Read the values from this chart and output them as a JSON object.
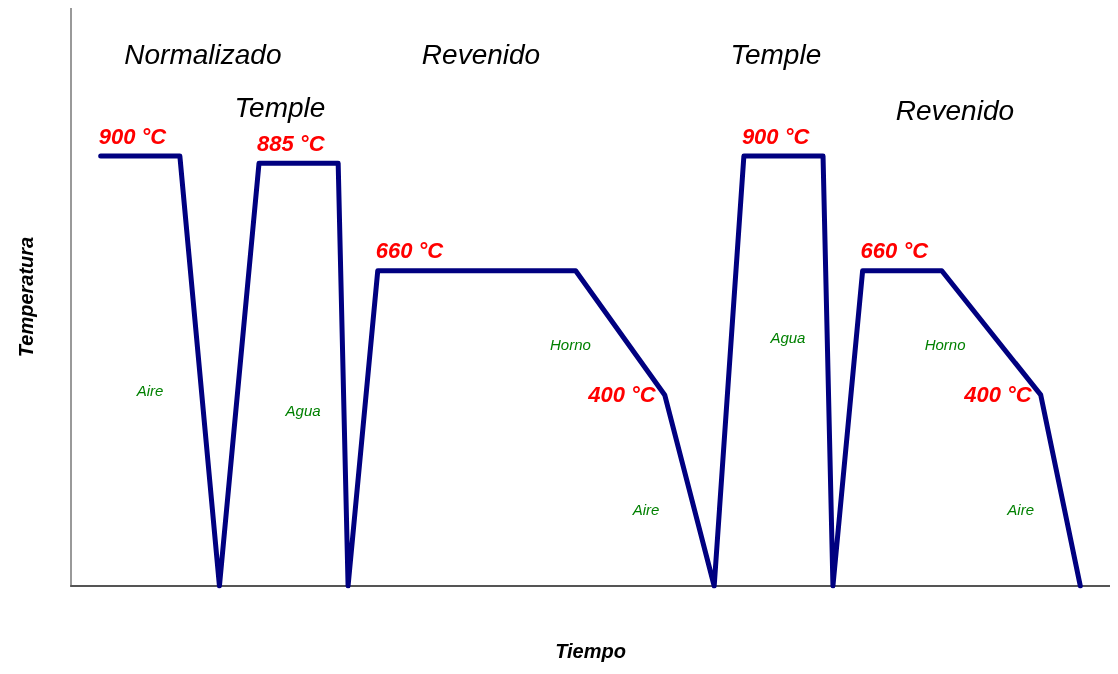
{
  "chart_data": {
    "type": "line",
    "xlabel": "Tiempo",
    "ylabel": "Temperatura",
    "ylim": [
      0,
      1210
    ],
    "categories": [
      null,
      null,
      null,
      null,
      null,
      null,
      null,
      null,
      null,
      null,
      null,
      null,
      null,
      null,
      null,
      null,
      null,
      null,
      null,
      null,
      null,
      null,
      null,
      null,
      null,
      null,
      null,
      null,
      null,
      null,
      null,
      null,
      null,
      null,
      null,
      null,
      null,
      null,
      null,
      null,
      null,
      null,
      null,
      null,
      null,
      null,
      null,
      null,
      null,
      null,
      null,
      null,
      null,
      null,
      null,
      null,
      null,
      null,
      null,
      null,
      null,
      null,
      null,
      null,
      null,
      null,
      null,
      null,
      null,
      null,
      null,
      null,
      null,
      null,
      null,
      null,
      null,
      null,
      null,
      null,
      null,
      null,
      null,
      null,
      null,
      null,
      null,
      null,
      null,
      null,
      null,
      null,
      null,
      null,
      null,
      null,
      null,
      null,
      null,
      null,
      null,
      null,
      null,
      null,
      null,
      null
    ],
    "values": [
      null,
      null,
      null,
      900,
      null,
      null,
      null,
      null,
      null,
      null,
      null,
      900,
      null,
      null,
      null,
      0,
      null,
      null,
      null,
      885,
      null,
      null,
      null,
      null,
      null,
      null,
      null,
      885,
      0,
      null,
      null,
      660,
      null,
      null,
      null,
      null,
      null,
      null,
      null,
      null,
      null,
      null,
      null,
      null,
      null,
      null,
      null,
      null,
      null,
      null,
      null,
      660,
      null,
      null,
      null,
      null,
      null,
      null,
      null,
      null,
      400,
      null,
      null,
      null,
      null,
      0,
      null,
      null,
      900,
      null,
      null,
      null,
      null,
      null,
      null,
      null,
      900,
      0,
      null,
      null,
      660,
      null,
      null,
      null,
      null,
      null,
      null,
      null,
      660,
      null,
      null,
      null,
      null,
      null,
      null,
      null,
      null,
      null,
      400,
      null,
      null,
      null,
      0,
      null,
      null,
      null
    ],
    "value_labels": [
      null,
      null,
      null,
      "900 °C",
      null,
      null,
      null,
      null,
      null,
      null,
      null,
      null,
      null,
      null,
      null,
      null,
      null,
      null,
      null,
      "885 °C",
      null,
      null,
      null,
      null,
      null,
      null,
      null,
      null,
      null,
      null,
      null,
      "660 °C",
      null,
      null,
      null,
      null,
      null,
      null,
      null,
      null,
      null,
      null,
      null,
      null,
      null,
      null,
      null,
      null,
      null,
      null,
      null,
      null,
      null,
      null,
      null,
      null,
      null,
      null,
      null,
      null,
      "400 °C",
      null,
      null,
      null,
      null,
      null,
      null,
      null,
      "900 °C",
      null,
      null,
      null,
      null,
      null,
      null,
      null,
      null,
      null,
      null,
      null,
      "660 °C",
      null,
      null,
      null,
      null,
      null,
      null,
      null,
      null,
      null,
      null,
      null,
      null,
      null,
      null,
      null,
      null,
      null,
      "400 °C",
      null,
      null,
      null,
      null,
      null,
      null,
      null
    ],
    "color": "#000080",
    "tick_labels": false,
    "grid": false,
    "marker": "none",
    "line_style": "solid",
    "annotations": [
      "Normalizado",
      "Temple",
      "Revenido",
      "Temple",
      "Revenido",
      "Aire",
      "Agua",
      "Horno",
      "Aire",
      "Agua",
      "Horno",
      "Aire"
    ]
  }
}
